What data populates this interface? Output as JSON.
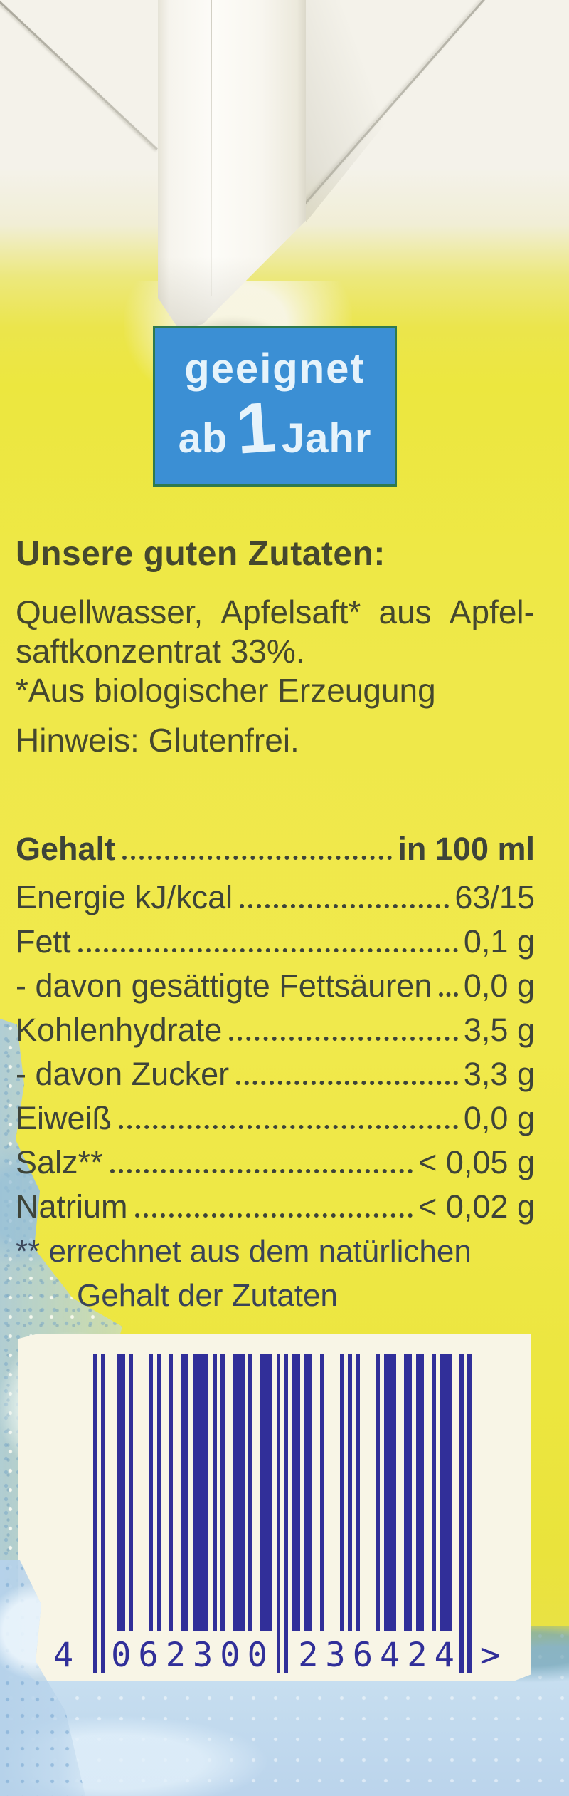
{
  "badge": {
    "geeignet": "geeignet",
    "ab": "ab",
    "one": "1",
    "jahr": "Jahr"
  },
  "ingredients": {
    "heading": "Unsere guten Zutaten:",
    "justified_words": [
      "Quellwasser,",
      "Apfelsaft*",
      "aus",
      "Apfel-"
    ],
    "line2": "saftkonzentrat 33%.",
    "line3": "*Aus biologischer Erzeugung",
    "notice": "Hinweis: Glutenfrei."
  },
  "nutrition": {
    "header": {
      "label": "Gehalt",
      "value": "in 100 ml"
    },
    "rows": [
      {
        "label": "Energie kJ/kcal",
        "value": "63/15"
      },
      {
        "label": "Fett",
        "value": "0,1 g"
      },
      {
        "label": "- davon gesättigte Fettsäuren",
        "value": "0,0 g"
      },
      {
        "label": "Kohlenhydrate",
        "value": "3,5 g"
      },
      {
        "label": "- davon Zucker",
        "value": "3,3 g"
      },
      {
        "label": "Eiweiß",
        "value": "0,0 g"
      },
      {
        "label": "Salz**",
        "value": "< 0,05 g"
      },
      {
        "label": "Natrium",
        "value": "< 0,02 g"
      }
    ],
    "footnote_line1": "** errechnet aus dem natürlichen",
    "footnote_line2": "Gehalt der Zutaten"
  },
  "barcode": {
    "ean": "4062300236424",
    "lead_digit": "4",
    "group1": "062300",
    "group2": "236424",
    "end_char": ">"
  },
  "colors": {
    "yellow": "#ece73f",
    "cream_top": "#f4f2ea",
    "ink": "#45482e",
    "ink_table": "#3e4439",
    "ink_cool": "#3a4458",
    "badge_blue": "#3b8fd4",
    "badge_border": "#2f7a4e",
    "badge_text": "#e6f3fb",
    "barcode_ink": "#312f99",
    "label_cream": "#f8f5e6",
    "water": "#c8dff0"
  }
}
